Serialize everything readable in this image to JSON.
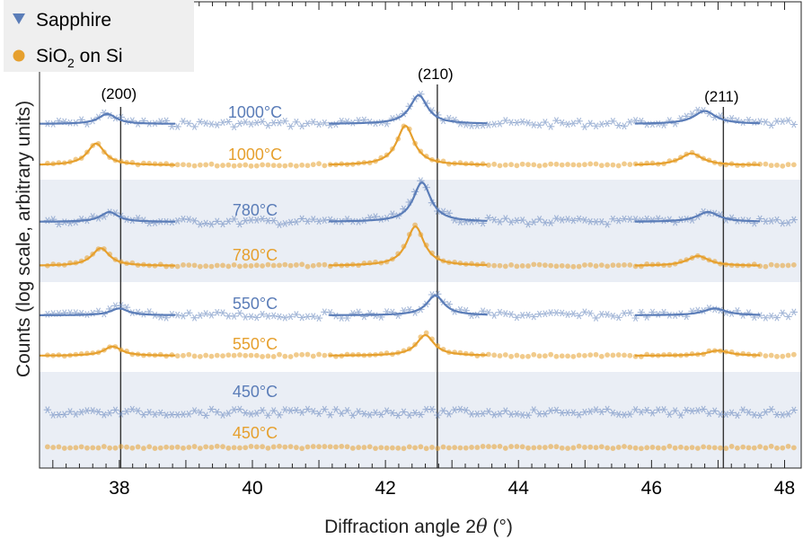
{
  "chart_data": {
    "type": "scatter",
    "xlabel": "Diffraction angle 2θ (°)",
    "ylabel": "Counts (log scale, arbitrary units)",
    "xlim": [
      36.8,
      48.25
    ],
    "xticks": [
      38,
      40,
      42,
      44,
      46,
      48
    ],
    "y_scale": "log",
    "grid": false,
    "legend_position": "top-left",
    "series": [
      {
        "name": "Sapphire",
        "marker": "triangle-down / asterisk",
        "color": "#5b7db8"
      },
      {
        "name": "SiO2 on Si",
        "marker": "circle",
        "color": "#e6a02e"
      }
    ],
    "reference_lines": [
      {
        "label": "(200)",
        "x": 38.02
      },
      {
        "label": "(210)",
        "x": 42.78
      },
      {
        "label": "(211)",
        "x": 47.08
      }
    ],
    "temperatures": [
      "1000°C",
      "780°C",
      "550°C",
      "450°C"
    ],
    "peaks": [
      {
        "temperature": "1000°C",
        "series": "Sapphire",
        "centers": [
          37.82,
          42.5,
          46.8
        ],
        "relative_heights": [
          0.35,
          1.0,
          0.45
        ]
      },
      {
        "temperature": "1000°C",
        "series": "SiO2 on Si",
        "centers": [
          37.65,
          42.3,
          46.6
        ],
        "relative_heights": [
          0.55,
          1.0,
          0.3
        ]
      },
      {
        "temperature": "780°C",
        "series": "Sapphire",
        "centers": [
          37.85,
          42.55,
          46.85
        ],
        "relative_heights": [
          0.25,
          1.0,
          0.25
        ]
      },
      {
        "temperature": "780°C",
        "series": "SiO2 on Si",
        "centers": [
          37.72,
          42.45,
          46.7
        ],
        "relative_heights": [
          0.45,
          1.0,
          0.25
        ]
      },
      {
        "temperature": "550°C",
        "series": "Sapphire",
        "centers": [
          38.0,
          42.75,
          46.95
        ],
        "relative_heights": [
          0.35,
          1.0,
          0.35
        ]
      },
      {
        "temperature": "550°C",
        "series": "SiO2 on Si",
        "centers": [
          37.9,
          42.6,
          47.0
        ],
        "relative_heights": [
          0.45,
          1.0,
          0.25
        ]
      }
    ]
  },
  "legend": {
    "items": [
      {
        "label": "Sapphire",
        "color": "#5b7db8",
        "marker": "triangle-down"
      },
      {
        "label_main": "SiO",
        "label_sub": "2",
        "label_rest": " on Si",
        "color": "#e6a02e",
        "marker": "circle"
      }
    ]
  },
  "colors": {
    "sapphire": "#5b7db8",
    "sio2": "#e6a02e",
    "band": "#eaeef5"
  }
}
